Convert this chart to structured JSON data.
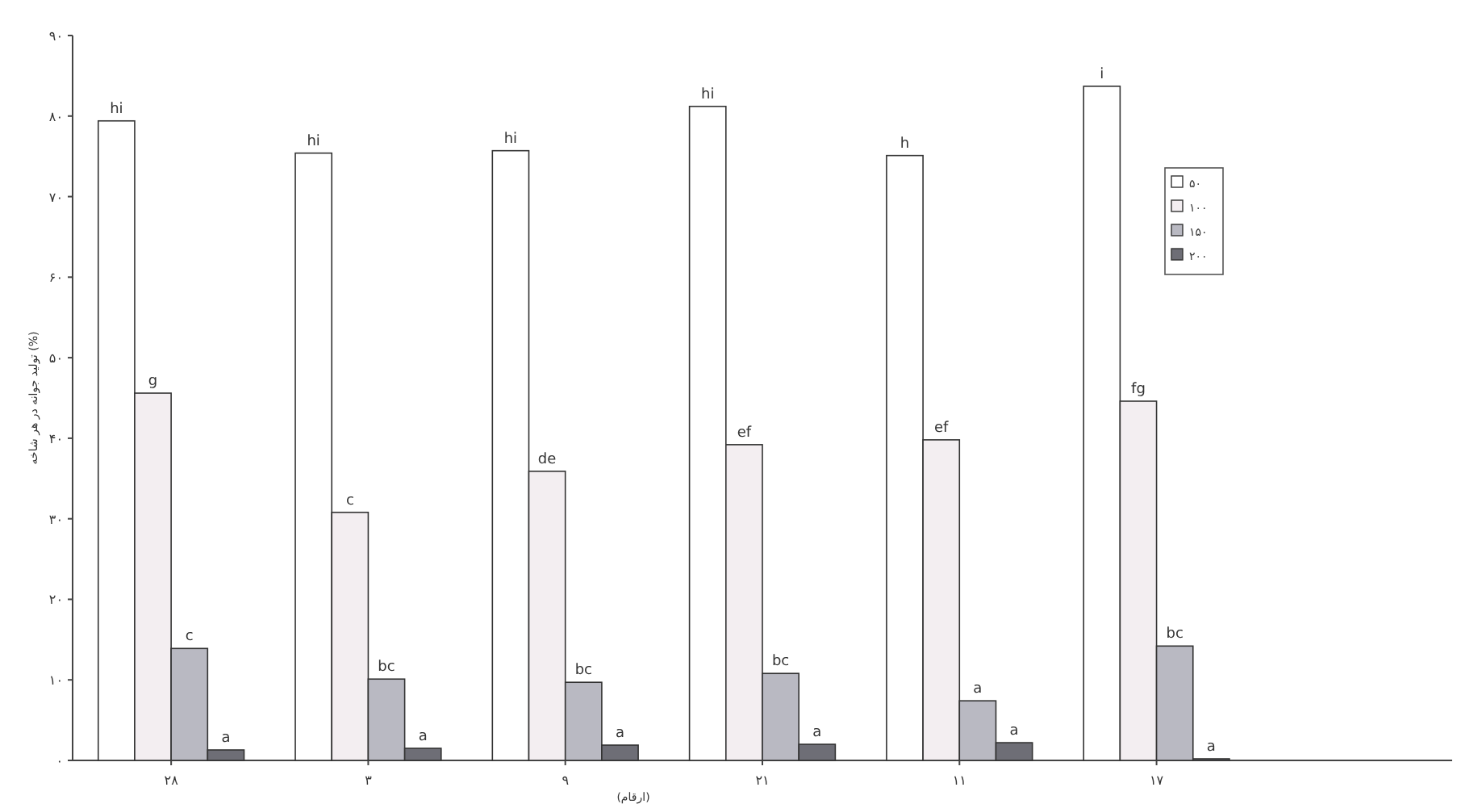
{
  "chart_data": {
    "type": "bar",
    "xlabel": "(ارقام)",
    "ylabel": "تولید جوانه در هر شاخه (%)",
    "categories": [
      "۲۸",
      "۳",
      "۹",
      "۲۱",
      "۱۱",
      "۱۷"
    ],
    "series": [
      {
        "name": "۵۰",
        "color": "#ffffff",
        "values": [
          79.4,
          75.4,
          75.7,
          81.2,
          75.1,
          83.7
        ],
        "value_labels": [
          "hi",
          "hi",
          "hi",
          "hi",
          "h",
          "i"
        ]
      },
      {
        "name": "۱۰۰",
        "color": "#f3eef1",
        "values": [
          45.6,
          30.8,
          35.9,
          39.2,
          39.8,
          44.6
        ],
        "value_labels": [
          "g",
          "c",
          "de",
          "ef",
          "ef",
          "fg"
        ]
      },
      {
        "name": "۱۵۰",
        "color": "#b9b9c2",
        "values": [
          13.9,
          10.1,
          9.7,
          10.8,
          7.4,
          14.2
        ],
        "value_labels": [
          "c",
          "bc",
          "bc",
          "bc",
          "a",
          "bc"
        ]
      },
      {
        "name": "۲۰۰",
        "color": "#6e6e76",
        "values": [
          1.3,
          1.5,
          1.9,
          2.0,
          2.2,
          0.2
        ],
        "value_labels": [
          "a",
          "a",
          "a",
          "a",
          "a",
          "a"
        ]
      }
    ],
    "ylim": [
      0,
      90
    ],
    "yticks": [
      {
        "value": 0,
        "label": "۰"
      },
      {
        "value": 10,
        "label": "۱۰"
      },
      {
        "value": 20,
        "label": "۲۰"
      },
      {
        "value": 30,
        "label": "۳۰"
      },
      {
        "value": 40,
        "label": "۴۰"
      },
      {
        "value": 50,
        "label": "۵۰"
      },
      {
        "value": 60,
        "label": "۶۰"
      },
      {
        "value": 70,
        "label": "۷۰"
      },
      {
        "value": 80,
        "label": "۸۰"
      },
      {
        "value": 90,
        "label": "۹۰"
      }
    ],
    "grid": false,
    "legend": "top right"
  }
}
